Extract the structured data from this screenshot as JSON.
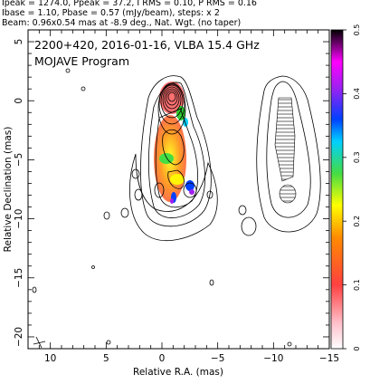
{
  "header": {
    "line1": "Ipeak = 1274.0, Ppeak = 37.2, I RMS = 0.10, P RMS = 0.16",
    "line2": "Ibase = 1.10, Pbase = 0.57 (mJy/beam), steps: x 2",
    "line3": "Beam: 0.96x0.54 mas at -8.9 deg., Nat. Wgt. (no taper)"
  },
  "plot": {
    "title": "2200+420, 2016-01-16, VLBA 15.4 GHz",
    "subtitle": "MOJAVE Program",
    "xlabel": "Relative R.A. (mas)",
    "ylabel": "Relative Declination (mas)",
    "x_range": [
      12,
      -15
    ],
    "y_range": [
      -21,
      6
    ],
    "x_ticks": [
      "10",
      "5",
      "0",
      "−5",
      "−10",
      "−15"
    ],
    "y_ticks": [
      "5",
      "0",
      "−5",
      "−10",
      "−15",
      "−20"
    ]
  },
  "colorbar": {
    "ticks": [
      "0",
      "0.1",
      "0.2",
      "0.3",
      "0.4",
      "0.5"
    ],
    "range": [
      0,
      0.5
    ],
    "colors": [
      "#ffffff",
      "#ffc0cb",
      "#ff4040",
      "#ff8c00",
      "#ffff00",
      "#44dd44",
      "#00d0ff",
      "#0040ff",
      "#a020f0",
      "#ff00ff",
      "#000000"
    ]
  }
}
